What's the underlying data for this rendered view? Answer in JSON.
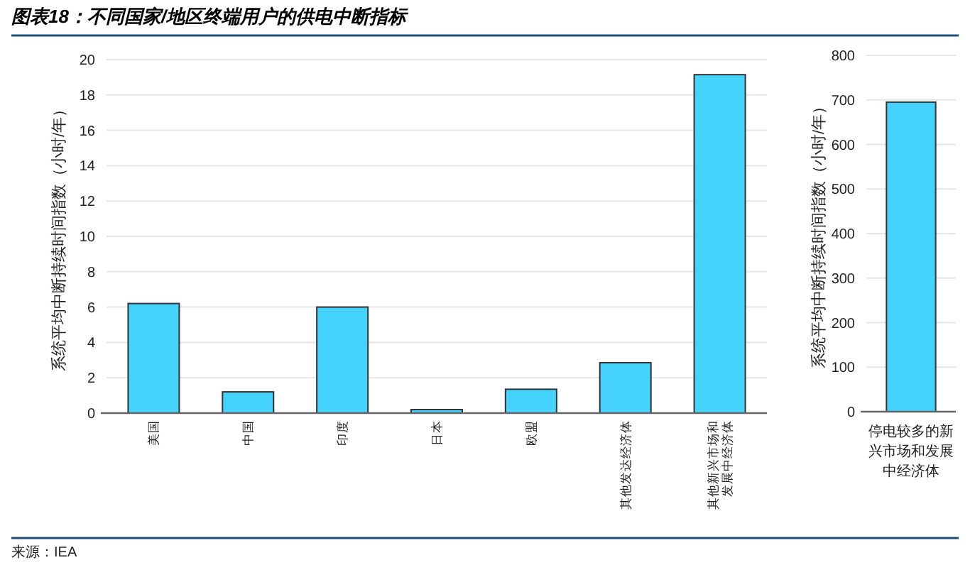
{
  "chart_data": [
    {
      "type": "bar",
      "title": "图表18：不同国家/地区终端用户的供电中断指标",
      "ylabel": "系统平均中断持续时间指数（小时/年）",
      "categories": [
        "美国",
        "中国",
        "印度",
        "日本",
        "欧盟",
        "其他发达经济体",
        "其他新兴市场和发展中经济体"
      ],
      "values": [
        6.2,
        1.2,
        6.0,
        0.2,
        1.35,
        2.85,
        19.15
      ],
      "color": "#45d3fd",
      "ylim": [
        0,
        20
      ],
      "yticks": [
        0,
        2,
        4,
        6,
        8,
        10,
        12,
        14,
        16,
        18,
        20
      ],
      "grid": "y",
      "annotations": [
        "来源：IEA"
      ]
    },
    {
      "type": "bar",
      "ylabel": "系统平均中断持续时间指数（小时/年）",
      "categories": [
        "停电较多的新兴市场和发展中经济体"
      ],
      "values": [
        695
      ],
      "color": "#45d3fd",
      "ylim": [
        0,
        800
      ],
      "yticks": [
        0,
        100,
        200,
        300,
        400,
        500,
        600,
        700,
        800
      ],
      "grid": "y"
    }
  ]
}
